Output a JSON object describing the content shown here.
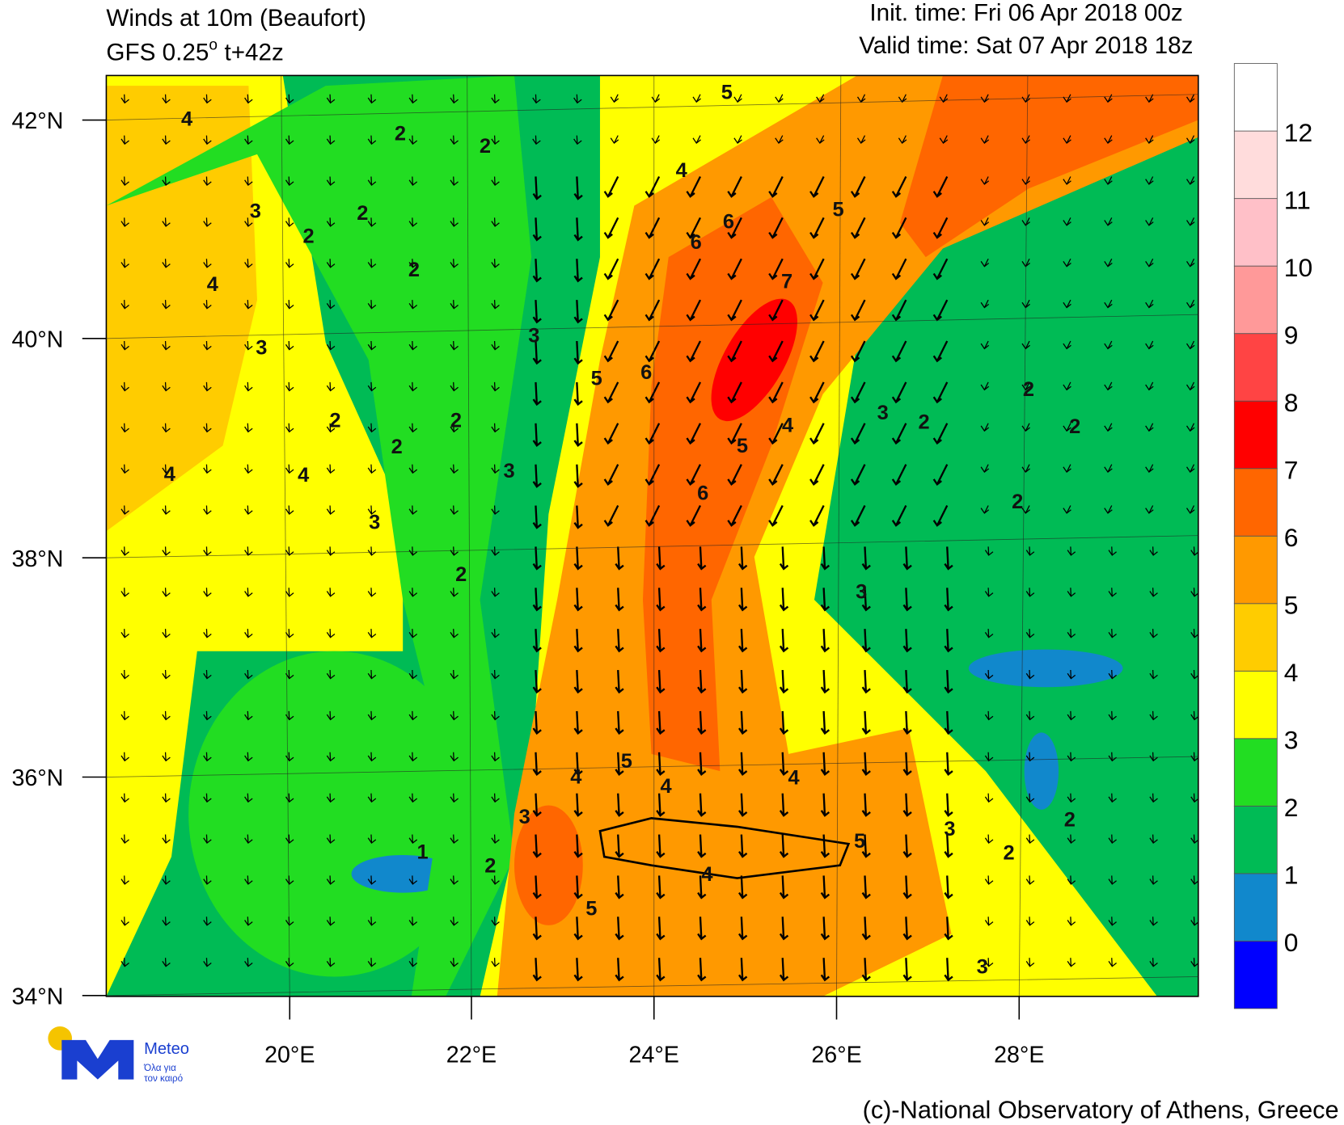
{
  "header": {
    "title": "Winds at 10m (Beaufort)",
    "model": "GFS 0.25",
    "degree": "o",
    "step": "t+42z",
    "init_time": "Init. time: Fri 06 Apr 2018 00z",
    "valid_time": "Valid time: Sat 07 Apr 2018 18z"
  },
  "axes": {
    "lat_labels": [
      "42°N",
      "40°N",
      "38°N",
      "36°N",
      "34°N"
    ],
    "lon_labels": [
      "20°E",
      "22°E",
      "24°E",
      "26°E",
      "28°E"
    ]
  },
  "colorbar": {
    "levels": [
      0,
      1,
      2,
      3,
      4,
      5,
      6,
      7,
      8,
      9,
      10,
      11,
      12
    ],
    "colors": [
      "#0000ff",
      "#1188cc",
      "#00bb55",
      "#22dd22",
      "#ffff00",
      "#ffcc00",
      "#ff9900",
      "#ff6600",
      "#ff0000",
      "#ff4444",
      "#ff9999",
      "#ffc0c8",
      "#ffdcdc",
      "#ffffff"
    ]
  },
  "field_labels": [
    4,
    2,
    2,
    3,
    2,
    4,
    2,
    2,
    3,
    4,
    4,
    3,
    2,
    2,
    3,
    2,
    3,
    2,
    1,
    2,
    3,
    4,
    5,
    6,
    7,
    6,
    5,
    6,
    5,
    4,
    5,
    5,
    6,
    4,
    3,
    2,
    2,
    2,
    3,
    5,
    4,
    4,
    5,
    3,
    2,
    4,
    3,
    2,
    2
  ],
  "logo": {
    "name": "Meteo",
    "tagline_1": "Όλα για",
    "tagline_2": "τον καιρό"
  },
  "footer": {
    "credit": "(c)-National Observatory of Athens, Greece"
  }
}
